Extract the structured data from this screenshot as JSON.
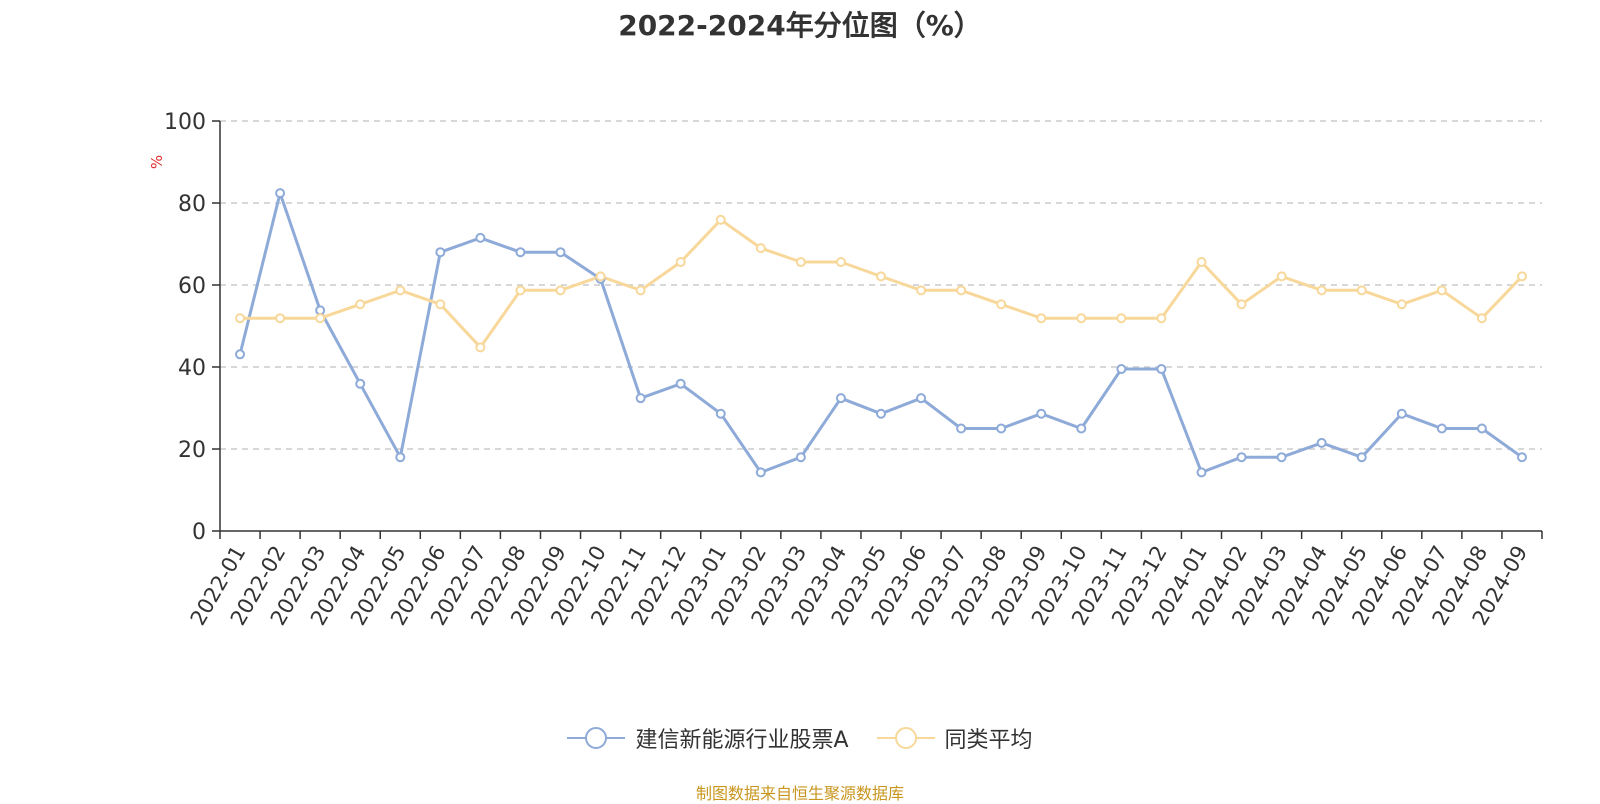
{
  "chart_data": {
    "type": "line",
    "title": "2022-2024年分位图（%）",
    "ylabel": "%",
    "ylim": [
      0,
      100
    ],
    "yticks": [
      0,
      20,
      40,
      60,
      80,
      100
    ],
    "grid": true,
    "legend_position": "bottom",
    "categories": [
      "2022-01",
      "2022-02",
      "2022-03",
      "2022-04",
      "2022-05",
      "2022-06",
      "2022-07",
      "2022-08",
      "2022-09",
      "2022-10",
      "2022-11",
      "2022-12",
      "2023-01",
      "2023-02",
      "2023-03",
      "2023-04",
      "2023-05",
      "2023-06",
      "2023-07",
      "2023-08",
      "2023-09",
      "2023-10",
      "2023-11",
      "2023-12",
      "2024-01",
      "2024-02",
      "2024-03",
      "2024-04",
      "2024-05",
      "2024-06",
      "2024-07",
      "2024-08",
      "2024-09"
    ],
    "series": [
      {
        "name": "建信新能源行业股票A",
        "color": "#8eaad8",
        "values": [
          43.1,
          82.4,
          53.8,
          35.9,
          18.0,
          68.0,
          71.5,
          68.0,
          68.0,
          61.5,
          32.4,
          35.9,
          28.6,
          14.3,
          18.0,
          32.4,
          28.6,
          32.4,
          25.0,
          25.0,
          28.6,
          25.0,
          39.5,
          39.5,
          14.3,
          18.0,
          18.0,
          21.5,
          18.0,
          28.6,
          25.0,
          25.0,
          18.0
        ]
      },
      {
        "name": "同类平均",
        "color": "#f8d89a",
        "values": [
          51.9,
          51.9,
          51.9,
          55.3,
          58.7,
          55.3,
          44.8,
          58.7,
          58.7,
          62.1,
          58.7,
          65.6,
          75.9,
          69.0,
          65.6,
          65.6,
          62.1,
          58.7,
          58.7,
          55.3,
          51.9,
          51.9,
          51.9,
          51.9,
          65.6,
          55.3,
          62.1,
          58.7,
          58.7,
          55.3,
          58.7,
          51.9,
          62.1
        ]
      }
    ]
  },
  "footer": {
    "source": "制图数据来自恒生聚源数据库"
  },
  "colors": {
    "ylabel": "#e03030",
    "axis": "#333333",
    "grid": "#cccccc",
    "source": "#c8961e"
  }
}
